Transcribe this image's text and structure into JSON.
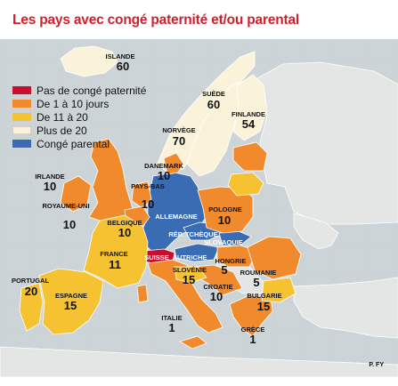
{
  "title": "Les pays avec congé paternité et/ou parental",
  "legend": [
    {
      "label": "Pas de congé paternité",
      "color": "#c8102e"
    },
    {
      "label": "De 1 à 10 jours",
      "color": "#f08a2c"
    },
    {
      "label": "De 11 à 20",
      "color": "#f5c232"
    },
    {
      "label": "Plus de 20",
      "color": "#fbf3d9"
    },
    {
      "label": "Congé parental",
      "color": "#3a6cb4"
    }
  ],
  "countries": [
    {
      "name": "ISLANDE",
      "value": "60"
    },
    {
      "name": "SUÈDE",
      "value": "60"
    },
    {
      "name": "FINLANDE",
      "value": "54"
    },
    {
      "name": "NORVÈGE",
      "value": "70"
    },
    {
      "name": "DANEMARK",
      "value": "10"
    },
    {
      "name": "IRLANDE",
      "value": "10"
    },
    {
      "name": "ROYAUME-UNI",
      "value": "10"
    },
    {
      "name": "PAYS-BAS",
      "value": "10"
    },
    {
      "name": "BELGIQUE",
      "value": "10"
    },
    {
      "name": "ALLEMAGNE",
      "value": ""
    },
    {
      "name": "POLOGNE",
      "value": "10"
    },
    {
      "name": "RÉP. TCHÈQUE",
      "value": ""
    },
    {
      "name": "SLOVAQUIE",
      "value": ""
    },
    {
      "name": "FRANCE",
      "value": "11"
    },
    {
      "name": "SUISSE",
      "value": ""
    },
    {
      "name": "AUTRICHE",
      "value": ""
    },
    {
      "name": "HONGRIE",
      "value": "5"
    },
    {
      "name": "SLOVÉNIE",
      "value": "15"
    },
    {
      "name": "ROUMANIE",
      "value": "5"
    },
    {
      "name": "CROATIE",
      "value": "10"
    },
    {
      "name": "BULGARIE",
      "value": "15"
    },
    {
      "name": "PORTUGAL",
      "value": "20"
    },
    {
      "name": "ESPAGNE",
      "value": "15"
    },
    {
      "name": "ITALIE",
      "value": "1"
    },
    {
      "name": "GRÈCE",
      "value": "1"
    }
  ],
  "credit": "P. FY"
}
